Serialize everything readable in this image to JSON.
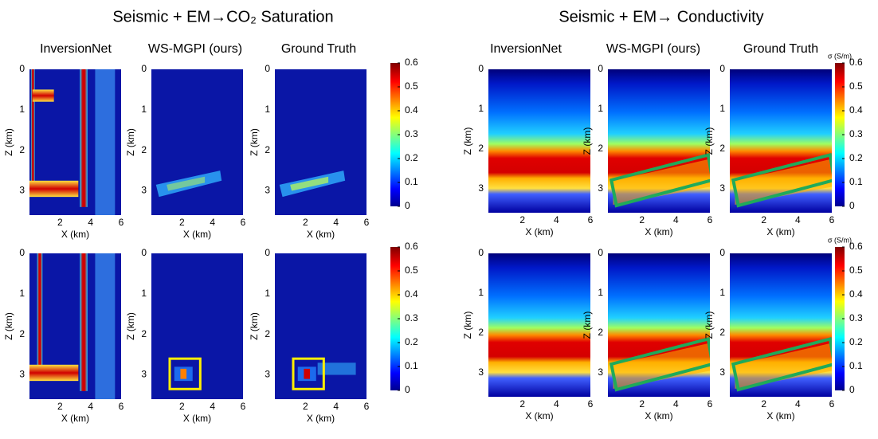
{
  "groups": [
    {
      "title": "Seismic + EM→CO₂ Saturation",
      "columns": [
        "InversionNet",
        "WS-MGPI (ours)",
        "Ground Truth"
      ],
      "colorbar_ticks": [
        "0",
        "0.1",
        "0.2",
        "0.3",
        "0.4",
        "0.5",
        "0.6"
      ]
    },
    {
      "title": "Seismic + EM→ Conductivity",
      "columns": [
        "InversionNet",
        "WS-MGPI (ours)",
        "Ground Truth"
      ],
      "colorbar_ticks": [
        "0",
        "0.1",
        "0.2",
        "0.3",
        "0.4",
        "0.5",
        "0.6"
      ],
      "colorbar_unit": "σ (S/m)"
    }
  ],
  "axes": {
    "x_label": "X (km)",
    "y_label": "Z (km)",
    "x_ticks": [
      "2",
      "4",
      "6"
    ],
    "y_ticks": [
      "0",
      "1",
      "2",
      "3"
    ]
  }
}
